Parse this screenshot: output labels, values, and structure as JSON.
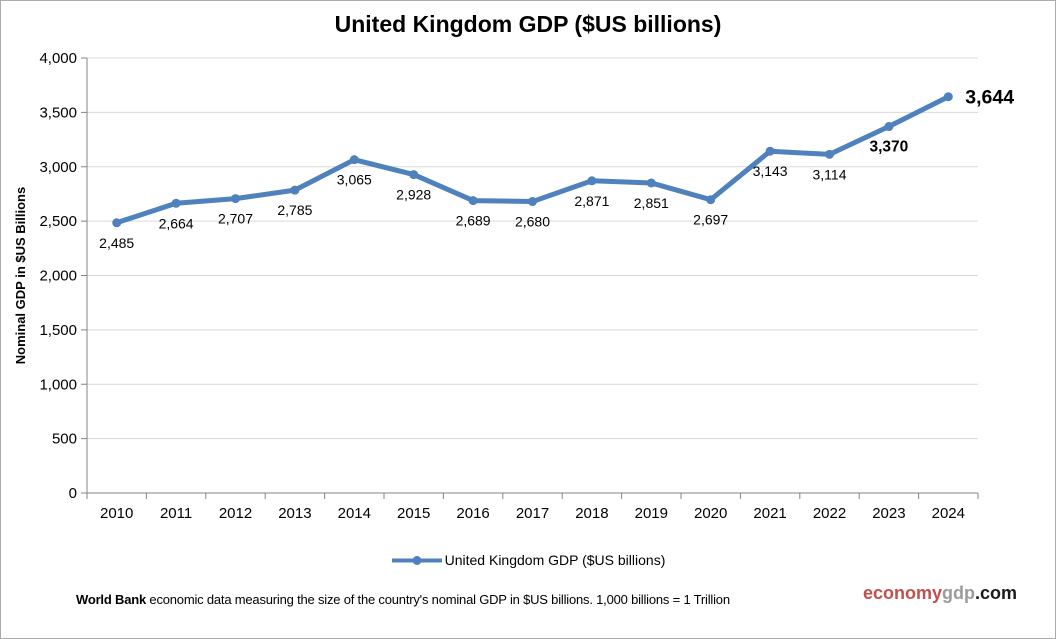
{
  "title": "United Kingdom GDP ($US billions)",
  "chart_data": {
    "type": "line",
    "title": "United Kingdom GDP ($US billions)",
    "xlabel": "",
    "ylabel": "Nominal GDP in $US Billions",
    "ylim": [
      0,
      4000
    ],
    "grid": true,
    "legend_position": "bottom",
    "yticks": [
      {
        "value": 0,
        "label": "0"
      },
      {
        "value": 500,
        "label": "500"
      },
      {
        "value": 1000,
        "label": "1,000"
      },
      {
        "value": 1500,
        "label": "1,500"
      },
      {
        "value": 2000,
        "label": "2,000"
      },
      {
        "value": 2500,
        "label": "2,500"
      },
      {
        "value": 3000,
        "label": "3,000"
      },
      {
        "value": 3500,
        "label": "3,500"
      },
      {
        "value": 4000,
        "label": "4,000"
      }
    ],
    "series": [
      {
        "name": "United Kingdom GDP ($US billions)",
        "points": [
          {
            "x": "2010",
            "y": 2485,
            "label": "2,485",
            "bold": false,
            "placement": "below",
            "size": "normal"
          },
          {
            "x": "2011",
            "y": 2664,
            "label": "2,664",
            "bold": false,
            "placement": "below",
            "size": "normal"
          },
          {
            "x": "2012",
            "y": 2707,
            "label": "2,707",
            "bold": false,
            "placement": "below",
            "size": "normal"
          },
          {
            "x": "2013",
            "y": 2785,
            "label": "2,785",
            "bold": false,
            "placement": "below",
            "size": "normal"
          },
          {
            "x": "2014",
            "y": 3065,
            "label": "3,065",
            "bold": false,
            "placement": "below",
            "size": "normal"
          },
          {
            "x": "2015",
            "y": 2928,
            "label": "2,928",
            "bold": false,
            "placement": "below",
            "size": "normal"
          },
          {
            "x": "2016",
            "y": 2689,
            "label": "2,689",
            "bold": false,
            "placement": "below",
            "size": "normal"
          },
          {
            "x": "2017",
            "y": 2680,
            "label": "2,680",
            "bold": false,
            "placement": "below",
            "size": "normal"
          },
          {
            "x": "2018",
            "y": 2871,
            "label": "2,871",
            "bold": false,
            "placement": "below",
            "size": "normal"
          },
          {
            "x": "2019",
            "y": 2851,
            "label": "2,851",
            "bold": false,
            "placement": "below",
            "size": "normal"
          },
          {
            "x": "2020",
            "y": 2697,
            "label": "2,697",
            "bold": false,
            "placement": "below",
            "size": "normal"
          },
          {
            "x": "2021",
            "y": 3143,
            "label": "3,143",
            "bold": false,
            "placement": "below",
            "size": "normal"
          },
          {
            "x": "2022",
            "y": 3114,
            "label": "3,114",
            "bold": false,
            "placement": "below",
            "size": "normal"
          },
          {
            "x": "2023",
            "y": 3370,
            "label": "3,370",
            "bold": true,
            "placement": "below",
            "size": "medium"
          },
          {
            "x": "2024",
            "y": 3644,
            "label": "3,644",
            "bold": true,
            "placement": "right",
            "size": "large"
          }
        ]
      }
    ]
  },
  "legend": {
    "label": "United Kingdom GDP ($US billions)"
  },
  "footer": {
    "bold": "World Bank",
    "text": " economic data  measuring the size of the country's nominal GDP in $US billions. 1,000 billions = 1 Trillion"
  },
  "brand": {
    "part1": "economy",
    "part2": "gdp",
    "part3": ".com"
  },
  "colors": {
    "line": "#4F81BD",
    "grid": "#D9D9D9",
    "axis": "#848484",
    "brand_red": "#C0504D",
    "brand_gray": "#9B9B9B"
  }
}
